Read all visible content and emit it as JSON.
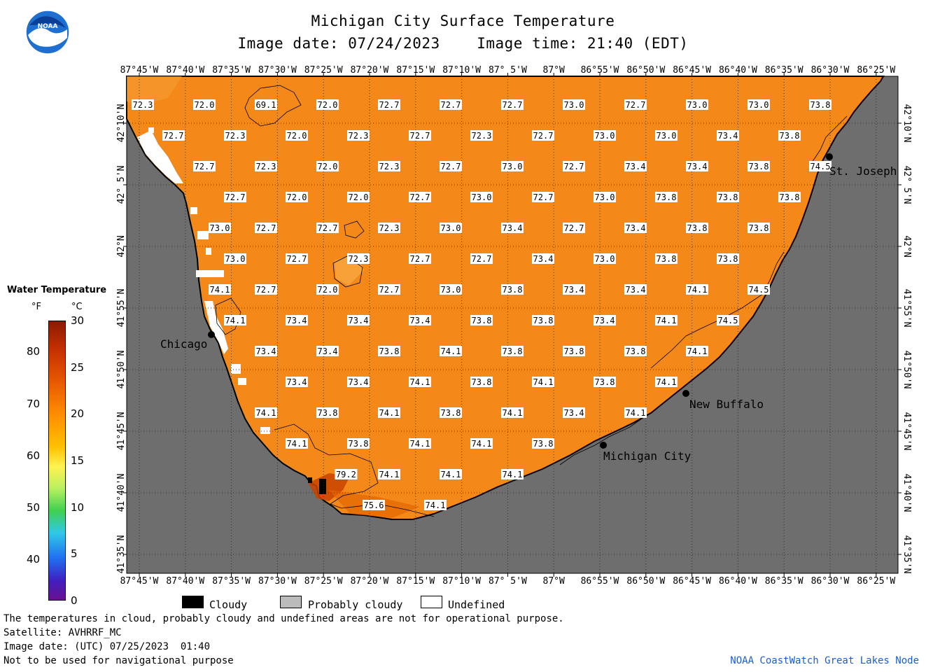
{
  "header": {
    "title": "Michigan City Surface Temperature",
    "date_text": "Image date: 07/24/2023",
    "time_text": "Image time: 21:40 (EDT)"
  },
  "logo": {
    "text": "NOAA",
    "icon": "noaa-logo-icon"
  },
  "axes": {
    "lon_labels": [
      "87°45'W",
      "87°40'W",
      "87°35'W",
      "87°30'W",
      "87°25'W",
      "87°20'W",
      "87°15'W",
      "87°10'W",
      "87° 5'W",
      "87°W",
      "86°55'W",
      "86°50'W",
      "86°45'W",
      "86°40'W",
      "86°35'W",
      "86°30'W",
      "86°25'W"
    ],
    "lat_labels": [
      "42°10'N",
      "42° 5'N",
      "42°N",
      "41°55'N",
      "41°50'N",
      "41°45'N",
      "41°40'N",
      "41°35'N"
    ]
  },
  "map_data": {
    "type": "sea-surface-temperature-map",
    "units": "°F",
    "grid_rows": [
      {
        "lat_row": 1,
        "values": [
          {
            "col": 0,
            "v": "72.3"
          },
          {
            "col": 2,
            "v": "72.0"
          },
          {
            "col": 4,
            "v": "69.1"
          },
          {
            "col": 6,
            "v": "72.0"
          },
          {
            "col": 8,
            "v": "72.7"
          },
          {
            "col": 10,
            "v": "72.7"
          },
          {
            "col": 12,
            "v": "72.7"
          },
          {
            "col": 14,
            "v": "73.0"
          },
          {
            "col": 16,
            "v": "72.7"
          },
          {
            "col": 18,
            "v": "73.0"
          },
          {
            "col": 20,
            "v": "73.0"
          },
          {
            "col": 22,
            "v": "73.8"
          }
        ]
      },
      {
        "lat_row": 2,
        "values": [
          {
            "col": 1,
            "v": "72.7"
          },
          {
            "col": 3,
            "v": "72.3"
          },
          {
            "col": 5,
            "v": "72.0"
          },
          {
            "col": 7,
            "v": "72.3"
          },
          {
            "col": 9,
            "v": "72.7"
          },
          {
            "col": 11,
            "v": "72.3"
          },
          {
            "col": 13,
            "v": "72.7"
          },
          {
            "col": 15,
            "v": "73.0"
          },
          {
            "col": 17,
            "v": "73.0"
          },
          {
            "col": 19,
            "v": "73.4"
          },
          {
            "col": 21,
            "v": "73.8"
          }
        ]
      },
      {
        "lat_row": 3,
        "values": [
          {
            "col": 2,
            "v": "72.7"
          },
          {
            "col": 4,
            "v": "72.3"
          },
          {
            "col": 6,
            "v": "72.0"
          },
          {
            "col": 8,
            "v": "72.3"
          },
          {
            "col": 10,
            "v": "72.7"
          },
          {
            "col": 12,
            "v": "73.0"
          },
          {
            "col": 14,
            "v": "72.7"
          },
          {
            "col": 16,
            "v": "73.4"
          },
          {
            "col": 18,
            "v": "73.4"
          },
          {
            "col": 20,
            "v": "73.8"
          },
          {
            "col": 22,
            "v": "74.5"
          }
        ]
      },
      {
        "lat_row": 4,
        "values": [
          {
            "col": 3,
            "v": "72.7"
          },
          {
            "col": 5,
            "v": "72.0"
          },
          {
            "col": 7,
            "v": "72.0"
          },
          {
            "col": 9,
            "v": "72.7"
          },
          {
            "col": 11,
            "v": "73.0"
          },
          {
            "col": 13,
            "v": "72.7"
          },
          {
            "col": 15,
            "v": "73.0"
          },
          {
            "col": 17,
            "v": "73.8"
          },
          {
            "col": 19,
            "v": "73.8"
          },
          {
            "col": 21,
            "v": "73.8"
          }
        ]
      },
      {
        "lat_row": 5,
        "values": [
          {
            "col": 2.5,
            "v": "73.0"
          },
          {
            "col": 4,
            "v": "72.7"
          },
          {
            "col": 6,
            "v": "72.7"
          },
          {
            "col": 8,
            "v": "72.3"
          },
          {
            "col": 10,
            "v": "73.0"
          },
          {
            "col": 12,
            "v": "73.4"
          },
          {
            "col": 14,
            "v": "72.7"
          },
          {
            "col": 16,
            "v": "73.4"
          },
          {
            "col": 18,
            "v": "73.8"
          },
          {
            "col": 20,
            "v": "73.8"
          }
        ]
      },
      {
        "lat_row": 6,
        "values": [
          {
            "col": 3,
            "v": "73.0"
          },
          {
            "col": 5,
            "v": "72.7"
          },
          {
            "col": 7,
            "v": "72.3"
          },
          {
            "col": 9,
            "v": "72.7"
          },
          {
            "col": 11,
            "v": "72.7"
          },
          {
            "col": 13,
            "v": "73.4"
          },
          {
            "col": 15,
            "v": "73.0"
          },
          {
            "col": 17,
            "v": "73.8"
          },
          {
            "col": 19,
            "v": "73.8"
          }
        ]
      },
      {
        "lat_row": 7,
        "values": [
          {
            "col": 2.5,
            "v": "74.1"
          },
          {
            "col": 4,
            "v": "72.7"
          },
          {
            "col": 6,
            "v": "72.0"
          },
          {
            "col": 8,
            "v": "72.7"
          },
          {
            "col": 10,
            "v": "73.0"
          },
          {
            "col": 12,
            "v": "73.8"
          },
          {
            "col": 14,
            "v": "73.4"
          },
          {
            "col": 16,
            "v": "73.4"
          },
          {
            "col": 18,
            "v": "74.1"
          },
          {
            "col": 20,
            "v": "74.5"
          }
        ]
      },
      {
        "lat_row": 8,
        "values": [
          {
            "col": 3,
            "v": "74.1"
          },
          {
            "col": 5,
            "v": "73.4"
          },
          {
            "col": 7,
            "v": "73.4"
          },
          {
            "col": 9,
            "v": "73.4"
          },
          {
            "col": 11,
            "v": "73.8"
          },
          {
            "col": 13,
            "v": "73.8"
          },
          {
            "col": 15,
            "v": "73.4"
          },
          {
            "col": 17,
            "v": "74.1"
          },
          {
            "col": 19,
            "v": "74.5"
          }
        ]
      },
      {
        "lat_row": 9,
        "values": [
          {
            "col": 4,
            "v": "73.4"
          },
          {
            "col": 6,
            "v": "73.4"
          },
          {
            "col": 8,
            "v": "73.8"
          },
          {
            "col": 10,
            "v": "74.1"
          },
          {
            "col": 12,
            "v": "73.8"
          },
          {
            "col": 14,
            "v": "73.8"
          },
          {
            "col": 16,
            "v": "73.8"
          },
          {
            "col": 18,
            "v": "74.1"
          }
        ]
      },
      {
        "lat_row": 10,
        "values": [
          {
            "col": 5,
            "v": "73.4"
          },
          {
            "col": 7,
            "v": "73.4"
          },
          {
            "col": 9,
            "v": "74.1"
          },
          {
            "col": 11,
            "v": "73.8"
          },
          {
            "col": 13,
            "v": "74.1"
          },
          {
            "col": 15,
            "v": "73.8"
          },
          {
            "col": 17,
            "v": "74.1"
          }
        ]
      },
      {
        "lat_row": 11,
        "values": [
          {
            "col": 4,
            "v": "74.1"
          },
          {
            "col": 6,
            "v": "73.8"
          },
          {
            "col": 8,
            "v": "74.1"
          },
          {
            "col": 10,
            "v": "73.8"
          },
          {
            "col": 12,
            "v": "74.1"
          },
          {
            "col": 14,
            "v": "73.4"
          },
          {
            "col": 16,
            "v": "74.1"
          }
        ]
      },
      {
        "lat_row": 12,
        "values": [
          {
            "col": 5,
            "v": "74.1"
          },
          {
            "col": 7,
            "v": "73.8"
          },
          {
            "col": 9,
            "v": "74.1"
          },
          {
            "col": 11,
            "v": "74.1"
          },
          {
            "col": 13,
            "v": "73.8"
          }
        ]
      },
      {
        "lat_row": 13,
        "values": [
          {
            "col": 6.6,
            "v": "79.2"
          },
          {
            "col": 8,
            "v": "74.1"
          },
          {
            "col": 10,
            "v": "74.1"
          },
          {
            "col": 12,
            "v": "74.1"
          }
        ]
      },
      {
        "lat_row": 14,
        "values": [
          {
            "col": 7.5,
            "v": "75.6"
          },
          {
            "col": 9.5,
            "v": "74.1"
          }
        ]
      }
    ],
    "cities": [
      {
        "name": "Chicago",
        "lon": "87°37'W",
        "lat": "41°52'N"
      },
      {
        "name": "Michigan City",
        "lon": "86°54'W",
        "lat": "41°43'N"
      },
      {
        "name": "New Buffalo",
        "lon": "86°45'W",
        "lat": "41°48'N"
      },
      {
        "name": "St. Joseph",
        "lon": "86°30'W",
        "lat": "42°06'N"
      }
    ],
    "colors": {
      "water": "#f4891a",
      "land": "#6e6e6e",
      "cloudy": "#000000",
      "probably_cloudy": "#bbbbbb",
      "undefined": "#ffffff"
    }
  },
  "legend": {
    "title": "Water Temperature",
    "unit_f": "°F",
    "unit_c": "°C",
    "f_ticks": [
      "80",
      "70",
      "60",
      "50",
      "40"
    ],
    "c_ticks": [
      "30",
      "25",
      "20",
      "15",
      "10",
      "5",
      "0"
    ]
  },
  "key": {
    "cloudy": "Cloudy",
    "probably_cloudy": "Probably cloudy",
    "undefined": "Undefined"
  },
  "footer": {
    "disclaimer": "The temperatures in cloud, probably cloudy and undefined areas are not for operational purpose.",
    "satellite": "Satellite: AVHRRF_MC",
    "utc_date": "Image date: (UTC) 07/25/2023  01:40",
    "navigation": "Not to be used for navigational purpose",
    "credit": "NOAA CoastWatch Great Lakes Node"
  }
}
